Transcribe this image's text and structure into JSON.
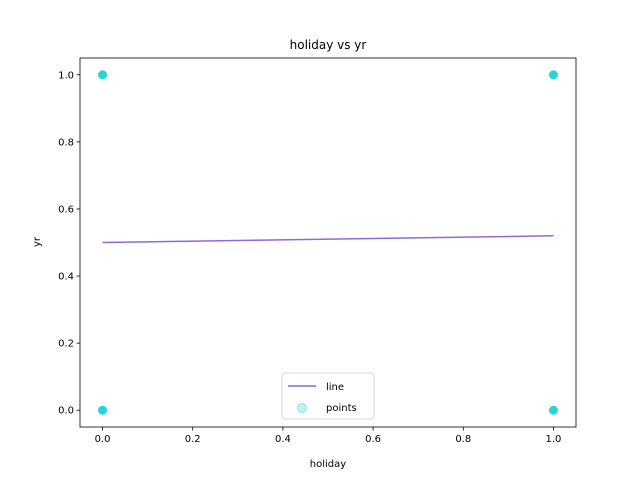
{
  "chart_data": {
    "type": "scatter",
    "title": "holiday vs yr",
    "xlabel": "holiday",
    "ylabel": "yr",
    "xlim": [
      -0.05,
      1.05
    ],
    "ylim": [
      -0.05,
      1.05
    ],
    "xticks": [
      0.0,
      0.2,
      0.4,
      0.6,
      0.8,
      1.0
    ],
    "xtick_labels": [
      "0.0",
      "0.2",
      "0.4",
      "0.6",
      "0.8",
      "1.0"
    ],
    "yticks": [
      0.0,
      0.2,
      0.4,
      0.6,
      0.8,
      1.0
    ],
    "ytick_labels": [
      "0.0",
      "0.2",
      "0.4",
      "0.6",
      "0.8",
      "1.0"
    ],
    "grid": false,
    "legend_position": "bottom-center",
    "series": [
      {
        "name": "line",
        "kind": "line",
        "color": "#9467d6",
        "x": [
          0.0,
          1.0
        ],
        "y": [
          0.5,
          0.52
        ]
      },
      {
        "name": "points",
        "kind": "scatter",
        "color": "#00ced1",
        "x": [
          0.0,
          0.0,
          1.0,
          1.0
        ],
        "y": [
          1.0,
          0.0,
          1.0,
          0.0
        ]
      }
    ]
  }
}
